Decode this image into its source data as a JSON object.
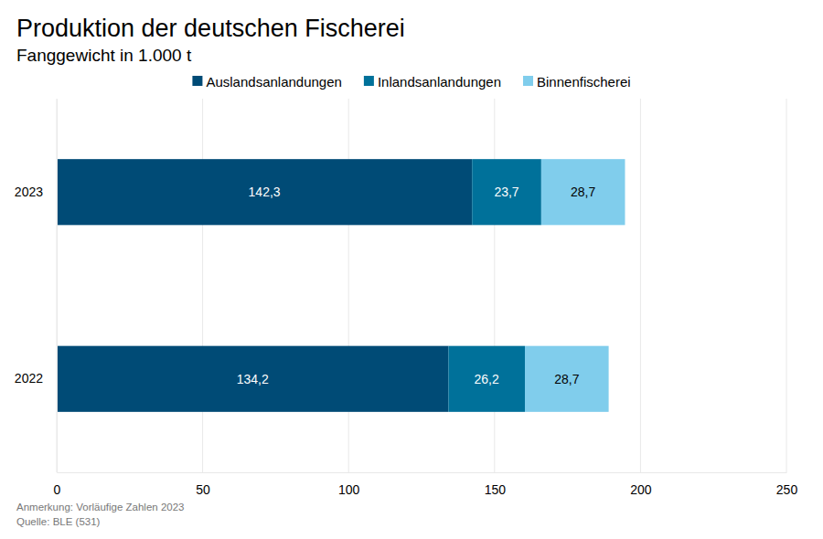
{
  "chart_data": {
    "type": "bar",
    "orientation": "horizontal",
    "stacked": true,
    "data_labels": true,
    "grid": true,
    "legend": "top",
    "title": "Produktion der deutschen Fischerei",
    "subtitle": "Fanggewicht in 1.000 t",
    "categories": [
      "2023",
      "2022"
    ],
    "series": [
      {
        "name": "Auslandsanlandungen",
        "color": "#004b76",
        "values": [
          142.3,
          134.2
        ],
        "value_labels": [
          "142,3",
          "134,2"
        ]
      },
      {
        "name": "Inlandsanlandungen",
        "color": "#00719a",
        "values": [
          23.7,
          26.2
        ],
        "value_labels": [
          "23,7",
          "26,2"
        ]
      },
      {
        "name": "Binnenfischerei",
        "color": "#80cdec",
        "values": [
          28.7,
          28.7
        ],
        "value_labels": [
          "28,7",
          "28,7"
        ]
      }
    ],
    "xlim": [
      0,
      250
    ],
    "xticks": [
      0,
      50,
      100,
      150,
      200,
      250
    ],
    "annotations": [
      "Anmerkung: Vorläufige Zahlen 2023",
      "Quelle: BLE (531)"
    ]
  }
}
